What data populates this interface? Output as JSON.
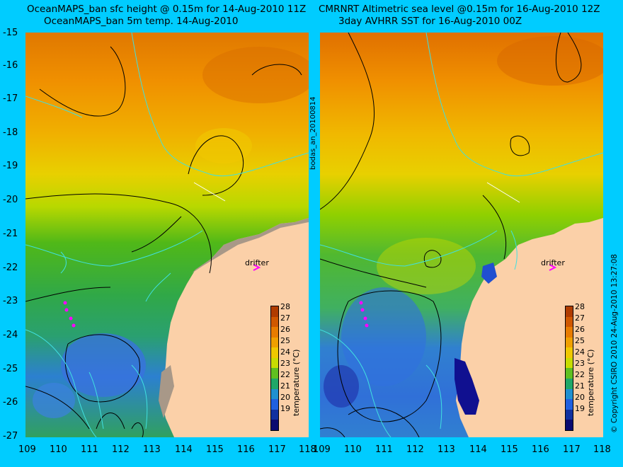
{
  "left_panel": {
    "title_line1": "OceanMAPS_ban sfc height @ 0.15m for 14-Aug-2010 11Z",
    "title_line2": "OceanMAPS_ban 5m temp. 14-Aug-2010",
    "drifter_label": "drifter"
  },
  "right_panel": {
    "title_line1": "CMRNRT Altimetric sea level  @0.15m  for 16-Aug-2010 12Z",
    "title_line2": "3day AVHRR SST for 16-Aug-2010 00Z",
    "drifter_label": "drifter"
  },
  "middle_label": "bodas_an_20100814",
  "copyright": "© Copyright CSIRO 2010   24-Aug-2010 13:27:08",
  "y_ticks": [
    "-15",
    "-16",
    "-17",
    "-18",
    "-19",
    "-20",
    "-21",
    "-22",
    "-23",
    "-24",
    "-25",
    "-26",
    "-27"
  ],
  "x_ticks": [
    "109",
    "110",
    "111",
    "112",
    "113",
    "114",
    "115",
    "116",
    "117",
    "118"
  ],
  "colorbar": {
    "title": "temperature (°C)",
    "ticks": [
      "28",
      "27",
      "26",
      "25",
      "24",
      "23",
      "22",
      "21",
      "20",
      "19"
    ],
    "colors": [
      "#c04a00",
      "#e06800",
      "#f08c00",
      "#f0b400",
      "#e6d800",
      "#b0d800",
      "#40b820",
      "#20a060",
      "#2080e0",
      "#2040c0",
      "#101080"
    ]
  },
  "colors": {
    "background": "#00ccff",
    "land": "#fbd0a8",
    "contour_ssh": "#000000",
    "contour_depth": "#40e0e0",
    "drifter_track": "#ff00ff"
  }
}
